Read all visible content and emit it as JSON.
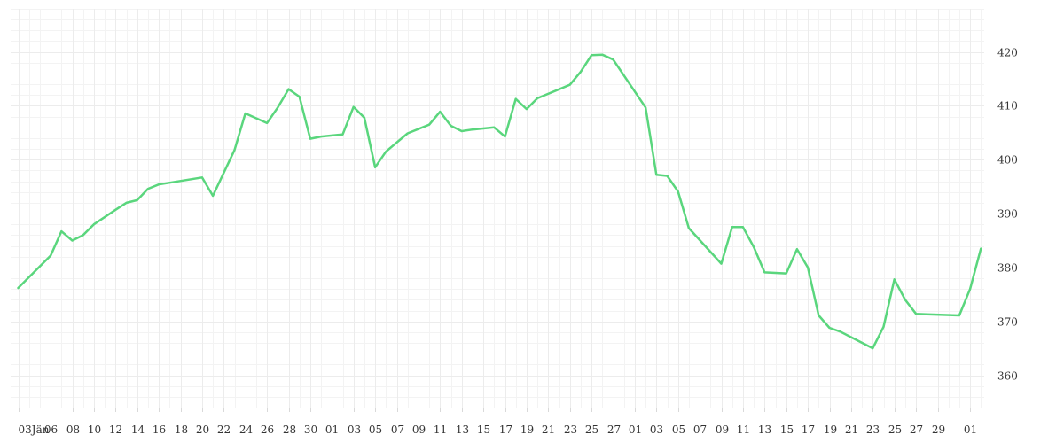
{
  "chart_data": {
    "type": "line",
    "title": "",
    "xlabel": "",
    "ylabel": "",
    "y_axis_position": "right",
    "ylim": [
      354,
      428
    ],
    "yticks": [
      360,
      370,
      380,
      390,
      400,
      410,
      420
    ],
    "grid": true,
    "line_color": "#5ad67d",
    "x_tick_labels": [
      "03Jän",
      "06",
      "08",
      "10",
      "12",
      "14",
      "16",
      "18",
      "20",
      "22",
      "24",
      "26",
      "28",
      "30",
      "01",
      "03",
      "05",
      "07",
      "09",
      "11",
      "13",
      "15",
      "17",
      "19",
      "21",
      "23",
      "25",
      "27",
      "01",
      "03",
      "05",
      "07",
      "09",
      "11",
      "13",
      "15",
      "17",
      "19",
      "21",
      "23",
      "25",
      "27",
      "29",
      "01"
    ],
    "x_tick_positions": [
      0,
      3,
      5,
      7,
      9,
      11,
      13,
      15,
      17,
      19,
      21,
      23,
      25,
      27,
      29,
      31,
      33,
      35,
      37,
      39,
      41,
      43,
      45,
      47,
      49,
      51,
      53,
      55,
      57,
      59,
      61,
      63,
      65,
      67,
      69,
      71,
      73,
      75,
      77,
      79,
      81,
      83,
      85,
      88
    ],
    "x_range": [
      -0.7,
      89.3
    ],
    "series": [
      {
        "x": [
          0,
          3,
          4,
          5,
          6,
          7,
          9,
          10,
          11,
          12,
          13,
          17,
          18,
          20,
          21,
          23,
          24,
          25,
          26,
          27,
          28,
          30,
          31,
          32,
          33,
          34,
          36,
          38,
          39,
          40,
          41,
          42,
          44,
          45,
          46,
          47,
          48,
          51,
          52,
          53,
          54,
          55,
          58,
          59,
          60,
          61,
          62,
          65,
          66,
          67,
          68,
          69,
          71,
          72,
          73,
          74,
          75,
          76,
          79,
          80,
          81,
          82,
          83,
          84,
          87,
          88,
          89
        ],
        "values": [
          376.2,
          382.2,
          386.7,
          385.0,
          386.0,
          388.0,
          390.7,
          392.0,
          392.5,
          394.6,
          395.4,
          396.7,
          393.3,
          401.8,
          408.6,
          406.8,
          409.7,
          413.1,
          411.7,
          403.9,
          404.3,
          404.7,
          409.8,
          407.8,
          398.6,
          401.5,
          404.9,
          406.5,
          408.9,
          406.3,
          405.3,
          405.6,
          406.0,
          404.3,
          411.3,
          409.4,
          411.4,
          413.9,
          416.3,
          419.4,
          419.5,
          418.6,
          409.7,
          397.2,
          397.0,
          394.1,
          387.3,
          380.7,
          387.5,
          387.5,
          383.8,
          379.1,
          378.9,
          383.4,
          380.0,
          371.1,
          368.8,
          368.1,
          365.0,
          369.0,
          377.8,
          374.0,
          371.4,
          371.3,
          371.1,
          376.0,
          383.5
        ]
      }
    ]
  }
}
